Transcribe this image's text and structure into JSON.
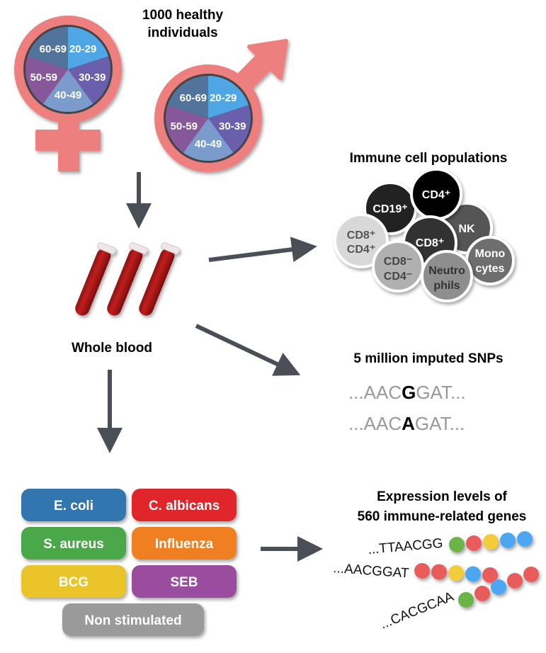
{
  "title": "1000 healthy individuals",
  "title_lines": [
    "1000 healthy",
    "individuals"
  ],
  "age_groups": [
    "20-29",
    "30-39",
    "40-49",
    "50-59",
    "60-69"
  ],
  "age_colors": [
    "#4fa6e4",
    "#6a5fad",
    "#7a9bcb",
    "#86589a",
    "#52749c"
  ],
  "sex_symbol_color": "#ee7f7f",
  "whole_blood": "Whole blood",
  "immune": {
    "title": "Immune cell populations",
    "cells": [
      {
        "label": "CD19⁺",
        "color": "#222222"
      },
      {
        "label": "CD4⁺",
        "color": "#000000"
      },
      {
        "label": "NK",
        "color": "#555555"
      },
      {
        "label": "CD8⁺",
        "color": "#333333"
      },
      {
        "label": "CD8⁺ CD4⁺",
        "line1": "CD8⁺",
        "line2": "CD4⁺",
        "color": "#d8d8d8"
      },
      {
        "label": "CD8⁻ CD4⁻",
        "line1": "CD8⁻",
        "line2": "CD4⁻",
        "color": "#b0b0b0"
      },
      {
        "label": "Neutrophils",
        "line1": "Neutro",
        "line2": "phils",
        "color": "#8e8e8e"
      },
      {
        "label": "Monocytes",
        "line1": "Mono",
        "line2": "cytes",
        "color": "#6e6e6e"
      }
    ]
  },
  "snps": {
    "title": "5 million imputed SNPs",
    "seq1": {
      "pre": "AAC",
      "snp": "G",
      "post": "GAT"
    },
    "seq2": {
      "pre": "AAC",
      "snp": "A",
      "post": "GAT"
    },
    "ellipsis": "..."
  },
  "stimuli": [
    {
      "label": "E. coli",
      "color": "#3276b0"
    },
    {
      "label": "C. albicans",
      "color": "#e0282a"
    },
    {
      "label": "S. aureus",
      "color": "#4ca84a"
    },
    {
      "label": "Influenza",
      "color": "#f07f23"
    },
    {
      "label": "BCG",
      "color": "#e9c52a"
    },
    {
      "label": "SEB",
      "color": "#9a4e9e"
    },
    {
      "label": "Non stimulated",
      "color": "#9a9a9a"
    }
  ],
  "expression": {
    "title_lines": [
      "Expression levels of",
      "560 immune-related genes"
    ],
    "strands": [
      {
        "seq": "...TTAACGG",
        "beads": [
          "#6ab44a",
          "#e85c5c",
          "#f2cc3a",
          "#4ea6f0",
          "#4ea6f0"
        ]
      },
      {
        "seq": "...AACGGAT",
        "beads": [
          "#e85c5c",
          "#e85c5c",
          "#f2cc3a",
          "#4ea6f0",
          "#e85c5c"
        ]
      },
      {
        "seq": "...CACGCAA",
        "beads": [
          "#6ab44a",
          "#e85c5c",
          "#4ea6f0",
          "#e85c5c",
          "#e85c5c"
        ]
      }
    ]
  }
}
